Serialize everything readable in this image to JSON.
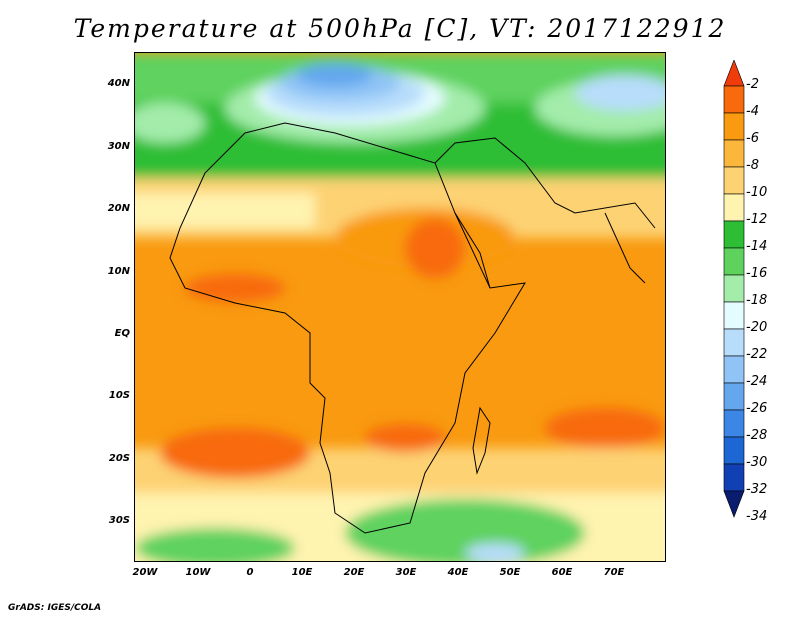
{
  "title": "Temperature at 500hPa [C], VT: 2017122912",
  "map": {
    "lat_labels": [
      "40N",
      "30N",
      "20N",
      "10N",
      "EQ",
      "10S",
      "20S",
      "30S"
    ],
    "lon_labels": [
      "20W",
      "10W",
      "0",
      "10E",
      "20E",
      "30E",
      "40E",
      "50E",
      "60E",
      "70E"
    ],
    "extent": {
      "lon_min": -22,
      "lon_max": 80,
      "lat_min": -36,
      "lat_max": 45
    }
  },
  "colorbar": {
    "labels": [
      "-2",
      "-4",
      "-6",
      "-8",
      "-10",
      "-12",
      "-14",
      "-16",
      "-18",
      "-20",
      "-22",
      "-24",
      "-26",
      "-28",
      "-30",
      "-32",
      "-34"
    ],
    "colors": [
      "#f03c0a",
      "#f86a0c",
      "#f99a10",
      "#fbb73c",
      "#fdd273",
      "#fff3b0",
      "#2dbe36",
      "#5fd25e",
      "#a3ecaa",
      "#e4fcff",
      "#b7ddfb",
      "#90c4f6",
      "#64a7ee",
      "#3c86e6",
      "#1d67d4",
      "#1140b4",
      "#0a1c6e"
    ],
    "units": "C"
  },
  "credit": "GrADS: IGES/COLA"
}
